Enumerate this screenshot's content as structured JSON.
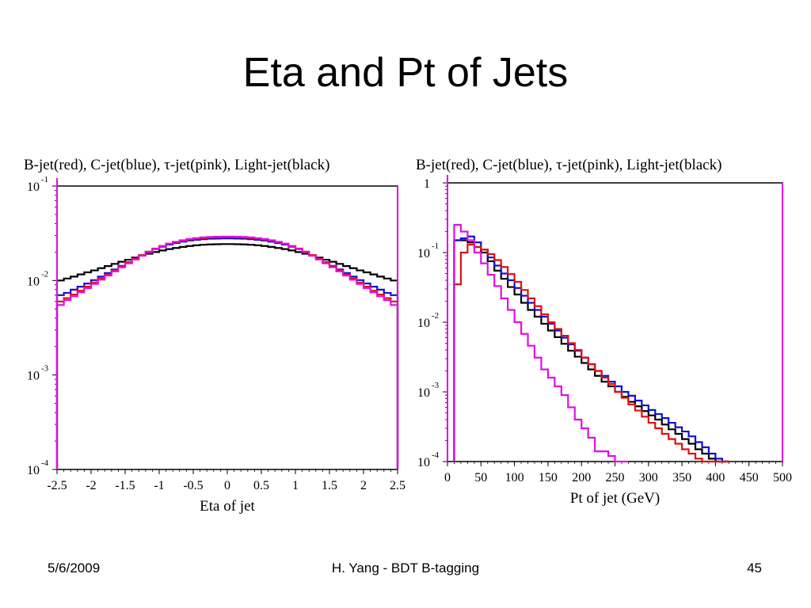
{
  "slide": {
    "title": "Eta and Pt of Jets",
    "footer_date": "5/6/2009",
    "footer_author": "H. Yang - BDT B-tagging",
    "page_number": "45"
  },
  "chart_data": [
    {
      "type": "step-histogram",
      "title": "B-jet(red), C-jet(blue), τ-jet(pink), Light-jet(black)",
      "xlabel": "Eta of jet",
      "ylabel": "",
      "xlim": [
        -2.5,
        2.5
      ],
      "ylim": [
        0.0001,
        0.1
      ],
      "yscale": "log",
      "x_ticks": [
        "-2.5",
        "-2",
        "-1.5",
        "-1",
        "-0.5",
        "0",
        "0.5",
        "1",
        "1.5",
        "2",
        "2.5"
      ],
      "y_ticks": [
        {
          "base": "10",
          "exp": "-1"
        },
        {
          "base": "10",
          "exp": "-2"
        },
        {
          "base": "10",
          "exp": "-3"
        },
        {
          "base": "10",
          "exp": "-4"
        }
      ],
      "bin_edges_start": -2.5,
      "bin_width": 0.1,
      "series": [
        {
          "name": "Light-jet",
          "color": "#000000",
          "values": [
            0.01,
            0.0105,
            0.011,
            0.0116,
            0.0122,
            0.0128,
            0.0135,
            0.0142,
            0.015,
            0.0158,
            0.0166,
            0.0175,
            0.0184,
            0.0192,
            0.02,
            0.0208,
            0.0215,
            0.0221,
            0.0227,
            0.0232,
            0.0236,
            0.0239,
            0.0241,
            0.0242,
            0.0243,
            0.0243,
            0.0242,
            0.0241,
            0.0239,
            0.0236,
            0.0232,
            0.0227,
            0.0221,
            0.0215,
            0.0208,
            0.02,
            0.0192,
            0.0184,
            0.0175,
            0.0166,
            0.0158,
            0.015,
            0.0142,
            0.0135,
            0.0128,
            0.0122,
            0.0116,
            0.011,
            0.0105,
            0.01
          ]
        },
        {
          "name": "C-jet",
          "color": "#1010d0",
          "values": [
            0.007,
            0.0074,
            0.008,
            0.0086,
            0.0093,
            0.0101,
            0.011,
            0.012,
            0.0131,
            0.0143,
            0.0156,
            0.017,
            0.0185,
            0.02,
            0.0215,
            0.0228,
            0.024,
            0.025,
            0.0258,
            0.0265,
            0.027,
            0.0274,
            0.0277,
            0.0278,
            0.0279,
            0.0279,
            0.0278,
            0.0277,
            0.0274,
            0.027,
            0.0265,
            0.0258,
            0.025,
            0.024,
            0.0228,
            0.0215,
            0.02,
            0.0185,
            0.017,
            0.0156,
            0.0143,
            0.0131,
            0.012,
            0.011,
            0.0101,
            0.0093,
            0.0086,
            0.008,
            0.0074,
            0.007
          ]
        },
        {
          "name": "B-jet",
          "color": "#e01010",
          "values": [
            0.006,
            0.0065,
            0.0071,
            0.0078,
            0.0086,
            0.0095,
            0.0105,
            0.0116,
            0.0128,
            0.0141,
            0.0155,
            0.017,
            0.0186,
            0.0202,
            0.0218,
            0.0232,
            0.0245,
            0.0256,
            0.0265,
            0.0272,
            0.0278,
            0.0282,
            0.0285,
            0.0287,
            0.0288,
            0.0288,
            0.0287,
            0.0285,
            0.0282,
            0.0278,
            0.0272,
            0.0265,
            0.0256,
            0.0245,
            0.0232,
            0.0218,
            0.0202,
            0.0186,
            0.017,
            0.0155,
            0.0141,
            0.0128,
            0.0116,
            0.0105,
            0.0095,
            0.0086,
            0.0078,
            0.0071,
            0.0065,
            0.006
          ]
        },
        {
          "name": "τ-jet",
          "color": "#e010e0",
          "values": [
            0.0055,
            0.0062,
            0.0068,
            0.0075,
            0.0083,
            0.0092,
            0.0102,
            0.0113,
            0.0125,
            0.0138,
            0.0152,
            0.0167,
            0.0183,
            0.02,
            0.0216,
            0.0231,
            0.0245,
            0.0257,
            0.0267,
            0.0275,
            0.0281,
            0.0286,
            0.0289,
            0.0291,
            0.0292,
            0.0292,
            0.0291,
            0.0289,
            0.0286,
            0.0281,
            0.0275,
            0.0267,
            0.0257,
            0.0245,
            0.0231,
            0.0216,
            0.02,
            0.0183,
            0.0167,
            0.0152,
            0.0138,
            0.0125,
            0.0113,
            0.0102,
            0.0092,
            0.0083,
            0.0075,
            0.0068,
            0.0062,
            0.0055
          ]
        }
      ]
    },
    {
      "type": "step-histogram",
      "title": "B-jet(red), C-jet(blue), τ-jet(pink), Light-jet(black)",
      "xlabel": "Pt of jet (GeV)",
      "ylabel": "",
      "xlim": [
        0,
        500
      ],
      "ylim": [
        0.0001,
        1
      ],
      "yscale": "log",
      "x_ticks": [
        "0",
        "50",
        "100",
        "150",
        "200",
        "250",
        "300",
        "350",
        "400",
        "450",
        "500"
      ],
      "y_ticks": [
        {
          "base": "1",
          "exp": ""
        },
        {
          "base": "10",
          "exp": "-1"
        },
        {
          "base": "10",
          "exp": "-2"
        },
        {
          "base": "10",
          "exp": "-3"
        },
        {
          "base": "10",
          "exp": "-4"
        }
      ],
      "bin_edges_start": 10,
      "bin_width": 10,
      "series": [
        {
          "name": "Light-jet",
          "color": "#000000",
          "values": [
            0.15,
            0.15,
            0.14,
            0.12,
            0.1,
            0.075,
            0.055,
            0.042,
            0.032,
            0.025,
            0.019,
            0.015,
            0.012,
            0.0095,
            0.0076,
            0.0061,
            0.0049,
            0.0039,
            0.0032,
            0.0026,
            0.0021,
            0.0017,
            0.0014,
            0.0012,
            0.001,
            0.00085,
            0.00072,
            0.00062,
            0.00053,
            0.00046,
            0.0004,
            0.00034,
            0.00029,
            0.00025,
            0.00021,
            0.00018,
            0.00015,
            0.00013,
            0.00011,
            0.0001,
            0.0001
          ]
        },
        {
          "name": "C-jet",
          "color": "#1010d0",
          "values": [
            0.15,
            0.16,
            0.17,
            0.14,
            0.11,
            0.085,
            0.065,
            0.05,
            0.04,
            0.031,
            0.024,
            0.019,
            0.015,
            0.012,
            0.0095,
            0.0076,
            0.006,
            0.0048,
            0.0039,
            0.0031,
            0.0025,
            0.002,
            0.0017,
            0.0014,
            0.0012,
            0.001,
            0.00088,
            0.00075,
            0.00064,
            0.00055,
            0.00048,
            0.00042,
            0.00036,
            0.00031,
            0.00027,
            0.00023,
            0.00019,
            0.00016,
            0.00013,
            0.00011,
            0.0001
          ]
        },
        {
          "name": "B-jet",
          "color": "#e01010",
          "values": [
            0.035,
            0.1,
            0.13,
            0.12,
            0.11,
            0.095,
            0.078,
            0.062,
            0.049,
            0.038,
            0.029,
            0.022,
            0.017,
            0.013,
            0.01,
            0.008,
            0.0064,
            0.005,
            0.004,
            0.0031,
            0.0025,
            0.002,
            0.0016,
            0.0013,
            0.001,
            0.00082,
            0.00066,
            0.00054,
            0.00044,
            0.00036,
            0.0003,
            0.00025,
            0.00021,
            0.00018,
            0.00015,
            0.00013,
            0.00011,
            0.0001,
            0.0001,
            0.0001,
            0.0001
          ]
        },
        {
          "name": "τ-jet",
          "color": "#e010e0",
          "values": [
            0.25,
            0.2,
            0.15,
            0.1,
            0.07,
            0.048,
            0.033,
            0.022,
            0.015,
            0.01,
            0.0068,
            0.0046,
            0.0031,
            0.0021,
            0.0016,
            0.0012,
            0.0009,
            0.0006,
            0.0004,
            0.0003,
            0.00022,
            0.00014,
            0.00014,
            0.00012,
            0.0001,
            0.0001
          ]
        }
      ]
    }
  ]
}
